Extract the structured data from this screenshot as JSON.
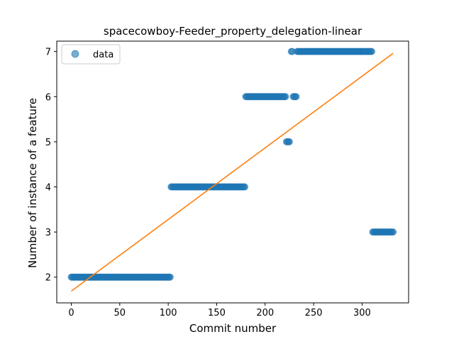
{
  "chart_data": {
    "type": "scatter",
    "title": "spacecowboy-Feeder_property_delegation-linear",
    "xlabel": "Commit number",
    "ylabel": "Number of instance of a feature",
    "xlim": [
      -15,
      348
    ],
    "ylim": [
      1.43,
      7.23
    ],
    "xticks": [
      0,
      50,
      100,
      150,
      200,
      250,
      300
    ],
    "yticks": [
      2,
      3,
      4,
      5,
      6,
      7
    ],
    "legend": {
      "placement": "top-left",
      "entries": [
        "data"
      ]
    },
    "grid": false,
    "colors": {
      "points": "#1f77b4",
      "fit_line": "#ff7f0e"
    },
    "series": [
      {
        "name": "data",
        "type": "scatter",
        "segments": [
          {
            "x_start": 0,
            "x_end": 102,
            "y": 2
          },
          {
            "x_start": 103,
            "x_end": 179,
            "y": 4
          },
          {
            "x_start": 180,
            "x_end": 221,
            "y": 6
          },
          {
            "x_start": 222,
            "x_end": 225,
            "y": 5
          },
          {
            "x_start": 227,
            "x_end": 228,
            "y": 7
          },
          {
            "x_start": 229,
            "x_end": 232,
            "y": 6
          },
          {
            "x_start": 233,
            "x_end": 310,
            "y": 7
          },
          {
            "x_start": 311,
            "x_end": 332,
            "y": 3
          }
        ]
      },
      {
        "type": "line",
        "x": [
          0,
          332
        ],
        "y": [
          1.69,
          6.96
        ]
      }
    ]
  }
}
